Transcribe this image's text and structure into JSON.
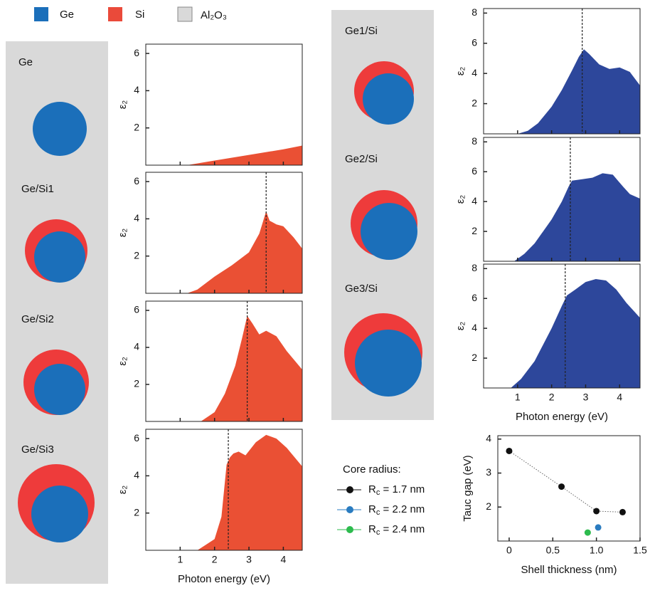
{
  "legend": [
    {
      "name": "Ge",
      "color": "#1b6fba"
    },
    {
      "name": "Si",
      "color": "#ea4a3a"
    },
    {
      "name": "Al₂O₃",
      "color": "#d9d9d9"
    }
  ],
  "structures": {
    "column_1": [
      "Ge",
      "Ge/Si1",
      "Ge/Si2",
      "Ge/Si3"
    ],
    "column_2": [
      "Ge1/Si",
      "Ge2/Si",
      "Ge3/Si"
    ]
  },
  "chart_data": [
    {
      "type": "area",
      "ylabel": "ε₂",
      "color": "#ea5034",
      "xlim": [
        0,
        4.55
      ],
      "ylim": [
        0,
        6.5
      ],
      "xticks": [
        1,
        2,
        3,
        4
      ],
      "yticks": [
        2,
        4,
        6
      ],
      "xtick_labels": false,
      "x": [
        0,
        1.2,
        2,
        3,
        4,
        4.55
      ],
      "values": [
        0,
        0,
        0.25,
        0.55,
        0.85,
        1.05
      ]
    },
    {
      "type": "area",
      "ylabel": "ε₂",
      "color": "#ea5034",
      "xlim": [
        0,
        4.55
      ],
      "ylim": [
        0,
        6.5
      ],
      "xticks": [
        1,
        2,
        3,
        4
      ],
      "yticks": [
        2,
        4,
        6
      ],
      "xtick_labels": false,
      "vline": 3.5,
      "x": [
        0,
        1.2,
        1.5,
        2,
        2.5,
        3,
        3.3,
        3.5,
        3.6,
        3.8,
        4,
        4.3,
        4.55
      ],
      "values": [
        0,
        0,
        0.2,
        0.9,
        1.5,
        2.2,
        3.2,
        4.4,
        3.9,
        3.7,
        3.6,
        3.0,
        2.4
      ]
    },
    {
      "type": "area",
      "ylabel": "ε₂",
      "color": "#ea5034",
      "xlim": [
        0,
        4.55
      ],
      "ylim": [
        0,
        6.5
      ],
      "xticks": [
        1,
        2,
        3,
        4
      ],
      "yticks": [
        2,
        4,
        6
      ],
      "xtick_labels": false,
      "vline": 2.95,
      "x": [
        0,
        1.6,
        2,
        2.3,
        2.6,
        2.8,
        2.95,
        3.1,
        3.3,
        3.5,
        3.8,
        4.1,
        4.55
      ],
      "values": [
        0,
        0,
        0.5,
        1.5,
        3.0,
        4.5,
        5.7,
        5.3,
        4.7,
        4.9,
        4.6,
        3.8,
        2.8
      ]
    },
    {
      "type": "area",
      "ylabel": "ε₂",
      "xlabel": "Photon energy (eV)",
      "color": "#ea5034",
      "xlim": [
        0,
        4.55
      ],
      "ylim": [
        0,
        6.5
      ],
      "xticks": [
        1,
        2,
        3,
        4
      ],
      "yticks": [
        2,
        4,
        6
      ],
      "xtick_labels": true,
      "vline": 2.4,
      "x": [
        0,
        1.5,
        2,
        2.2,
        2.35,
        2.45,
        2.55,
        2.7,
        2.9,
        3.2,
        3.5,
        3.8,
        4.1,
        4.55
      ],
      "values": [
        0,
        0,
        0.6,
        1.8,
        4.6,
        5.0,
        5.2,
        5.3,
        5.1,
        5.8,
        6.2,
        6.0,
        5.5,
        4.5
      ]
    },
    {
      "type": "area",
      "ylabel": "ε₂",
      "color": "#2d479b",
      "xlim": [
        0,
        4.6
      ],
      "ylim": [
        0,
        8.3
      ],
      "xticks": [
        1,
        2,
        3,
        4
      ],
      "yticks": [
        2,
        4,
        6,
        8
      ],
      "xtick_labels": false,
      "vline": 2.9,
      "x": [
        0,
        1,
        1.3,
        1.6,
        2,
        2.3,
        2.6,
        2.8,
        2.95,
        3.1,
        3.4,
        3.7,
        4,
        4.3,
        4.6
      ],
      "values": [
        0,
        0,
        0.2,
        0.7,
        1.8,
        2.9,
        4.2,
        5.1,
        5.6,
        5.3,
        4.6,
        4.3,
        4.4,
        4.1,
        3.2
      ]
    },
    {
      "type": "area",
      "ylabel": "ε₂",
      "color": "#2d479b",
      "xlim": [
        0,
        4.6
      ],
      "ylim": [
        0,
        8.3
      ],
      "xticks": [
        1,
        2,
        3,
        4
      ],
      "yticks": [
        2,
        4,
        6,
        8
      ],
      "xtick_labels": false,
      "vline": 2.55,
      "x": [
        0,
        0.9,
        1.2,
        1.5,
        2,
        2.3,
        2.5,
        2.6,
        2.9,
        3.2,
        3.5,
        3.8,
        4.1,
        4.3,
        4.6
      ],
      "values": [
        0,
        0,
        0.5,
        1.2,
        2.8,
        4.0,
        5.0,
        5.4,
        5.5,
        5.6,
        5.9,
        5.8,
        5.0,
        4.5,
        4.2
      ]
    },
    {
      "type": "area",
      "ylabel": "ε₂",
      "xlabel": "Photon energy (eV)",
      "color": "#2d479b",
      "xlim": [
        0,
        4.6
      ],
      "ylim": [
        0,
        8.3
      ],
      "xticks": [
        1,
        2,
        3,
        4
      ],
      "yticks": [
        2,
        4,
        6,
        8
      ],
      "xtick_labels": true,
      "vline": 2.4,
      "x": [
        0,
        0.8,
        1.1,
        1.5,
        2,
        2.3,
        2.45,
        2.7,
        3,
        3.3,
        3.6,
        3.9,
        4.2,
        4.6
      ],
      "values": [
        0,
        0,
        0.6,
        1.8,
        4.0,
        5.5,
        6.2,
        6.6,
        7.1,
        7.3,
        7.2,
        6.6,
        5.7,
        4.7
      ]
    },
    {
      "type": "scatter",
      "xlabel": "Shell thickness (nm)",
      "ylabel": "Tauc gap (eV)",
      "legend_title": "Core radius:",
      "xlim": [
        -0.13,
        1.5
      ],
      "ylim": [
        1,
        4.1
      ],
      "xticks": [
        0,
        0.5,
        {
          "value": 1,
          "label": "1.0"
        },
        1.5
      ],
      "yticks": [
        2,
        3,
        4
      ],
      "xtick_labels": true,
      "series": [
        {
          "name": "Rc = 1.7 nm",
          "color": "#111111",
          "x": [
            0,
            0.6,
            1.0,
            1.3
          ],
          "values": [
            3.65,
            2.6,
            1.88,
            1.85
          ]
        },
        {
          "name": "Rc = 2.2 nm",
          "color": "#2a7cc0",
          "x": [
            1.02
          ],
          "values": [
            1.4
          ]
        },
        {
          "name": "Rc = 2.4 nm",
          "color": "#2dbb4e",
          "x": [
            0.9
          ],
          "values": [
            1.25
          ]
        }
      ]
    }
  ]
}
